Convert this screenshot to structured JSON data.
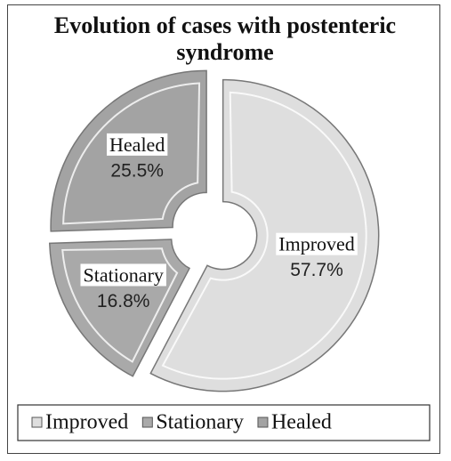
{
  "chart_data": {
    "type": "pie",
    "title": "Evolution of cases with postenteric syndrome",
    "categories": [
      "Improved",
      "Stationary",
      "Healed"
    ],
    "values": [
      57.7,
      16.8,
      25.5
    ],
    "value_labels": [
      "57.7%",
      "16.8%",
      "25.5%"
    ],
    "colors": [
      "#dedede",
      "#a9a9a9",
      "#a3a3a3"
    ],
    "donut": true,
    "exploded": true,
    "legend": "bottom"
  }
}
